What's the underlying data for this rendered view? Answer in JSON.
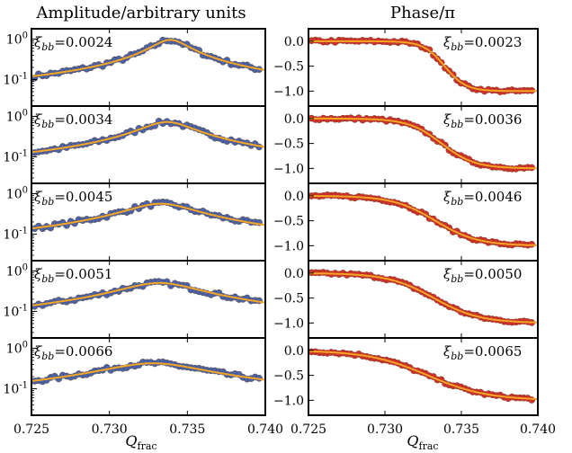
{
  "figure": {
    "amplitude_title": "Amplitude/arbitrary units",
    "phase_title": "Phase/π",
    "x_axis_label": "Q",
    "x_axis_label_subscript": "frac",
    "colors": {
      "amplitude_points": "#4a63a8",
      "phase_points": "#d0302a",
      "fit_line": "#f6a623"
    }
  },
  "chart_data": [
    {
      "type": "scatter",
      "panel": "amplitude",
      "row": 1,
      "annotation": "ξbb = 0.0024",
      "xi": 0.0024,
      "center": 0.7339,
      "peak": 0.95,
      "ylabel": "Amplitude/arbitrary units",
      "xlim": [
        0.725,
        0.74
      ],
      "ylim": [
        0.022,
        1.8
      ],
      "yscale": "log",
      "ytick_labels": [
        "10^0",
        "10^-1"
      ],
      "xticks": [
        0.725,
        0.73,
        0.735,
        0.74
      ]
    },
    {
      "type": "scatter",
      "panel": "amplitude",
      "row": 2,
      "annotation": "ξbb = 0.0034",
      "xi": 0.0034,
      "center": 0.7337,
      "peak": 0.72,
      "ylabel": "Amplitude/arbitrary units",
      "xlim": [
        0.725,
        0.74
      ],
      "ylim": [
        0.022,
        1.8
      ],
      "yscale": "log",
      "ytick_labels": [
        "10^0",
        "10^-1"
      ],
      "xticks": [
        0.725,
        0.73,
        0.735,
        0.74
      ]
    },
    {
      "type": "scatter",
      "panel": "amplitude",
      "row": 3,
      "annotation": "ξbb = 0.0045",
      "xi": 0.0045,
      "center": 0.7333,
      "peak": 0.56,
      "ylabel": "Amplitude/arbitrary units",
      "xlim": [
        0.725,
        0.74
      ],
      "ylim": [
        0.022,
        1.8
      ],
      "yscale": "log",
      "ytick_labels": [
        "10^0",
        "10^-1"
      ],
      "xticks": [
        0.725,
        0.73,
        0.735,
        0.74
      ]
    },
    {
      "type": "scatter",
      "panel": "amplitude",
      "row": 4,
      "annotation": "ξbb = 0.0051",
      "xi": 0.0051,
      "center": 0.7332,
      "peak": 0.5,
      "ylabel": "Amplitude/arbitrary units",
      "xlim": [
        0.725,
        0.74
      ],
      "ylim": [
        0.022,
        1.8
      ],
      "yscale": "log",
      "ytick_labels": [
        "10^0",
        "10^-1"
      ],
      "xticks": [
        0.725,
        0.73,
        0.735,
        0.74
      ]
    },
    {
      "type": "scatter",
      "panel": "amplitude",
      "row": 5,
      "annotation": "ξbb = 0.0066",
      "xi": 0.0066,
      "center": 0.7328,
      "peak": 0.42,
      "ylabel": "Amplitude/arbitrary units",
      "xlim": [
        0.725,
        0.74
      ],
      "ylim": [
        0.022,
        1.8
      ],
      "yscale": "log",
      "ytick_labels": [
        "10^0",
        "10^-1"
      ],
      "xticks": [
        0.725,
        0.73,
        0.735,
        0.74
      ]
    },
    {
      "type": "scatter",
      "panel": "phase",
      "row": 1,
      "annotation": "ξbb = 0.0023",
      "xi": 0.0023,
      "center": 0.7339,
      "ylabel": "Phase/π",
      "xlim": [
        0.725,
        0.74
      ],
      "ylim": [
        -1.3,
        0.25
      ],
      "yticks": [
        0.0,
        -0.5,
        -1.0
      ],
      "xticks": [
        0.725,
        0.73,
        0.735,
        0.74
      ]
    },
    {
      "type": "scatter",
      "panel": "phase",
      "row": 2,
      "annotation": "ξbb = 0.0036",
      "xi": 0.0036,
      "center": 0.7337,
      "ylabel": "Phase/π",
      "xlim": [
        0.725,
        0.74
      ],
      "ylim": [
        -1.3,
        0.25
      ],
      "yticks": [
        0.0,
        -0.5,
        -1.0
      ],
      "xticks": [
        0.725,
        0.73,
        0.735,
        0.74
      ]
    },
    {
      "type": "scatter",
      "panel": "phase",
      "row": 3,
      "annotation": "ξbb = 0.0046",
      "xi": 0.0046,
      "center": 0.7333,
      "ylabel": "Phase/π",
      "xlim": [
        0.725,
        0.74
      ],
      "ylim": [
        -1.3,
        0.25
      ],
      "yticks": [
        0.0,
        -0.5,
        -1.0
      ],
      "xticks": [
        0.725,
        0.73,
        0.735,
        0.74
      ]
    },
    {
      "type": "scatter",
      "panel": "phase",
      "row": 4,
      "annotation": "ξbb = 0.0050",
      "xi": 0.005,
      "center": 0.7332,
      "ylabel": "Phase/π",
      "xlim": [
        0.725,
        0.74
      ],
      "ylim": [
        -1.3,
        0.25
      ],
      "yticks": [
        0.0,
        -0.5,
        -1.0
      ],
      "xticks": [
        0.725,
        0.73,
        0.735,
        0.74
      ]
    },
    {
      "type": "scatter",
      "panel": "phase",
      "row": 5,
      "annotation": "ξbb = 0.0065",
      "xi": 0.0065,
      "center": 0.7328,
      "ylabel": "Phase/π",
      "xlim": [
        0.725,
        0.74
      ],
      "ylim": [
        -1.3,
        0.25
      ],
      "yticks": [
        0.0,
        -0.5,
        -1.0
      ],
      "xticks": [
        0.725,
        0.73,
        0.735,
        0.74
      ]
    }
  ]
}
